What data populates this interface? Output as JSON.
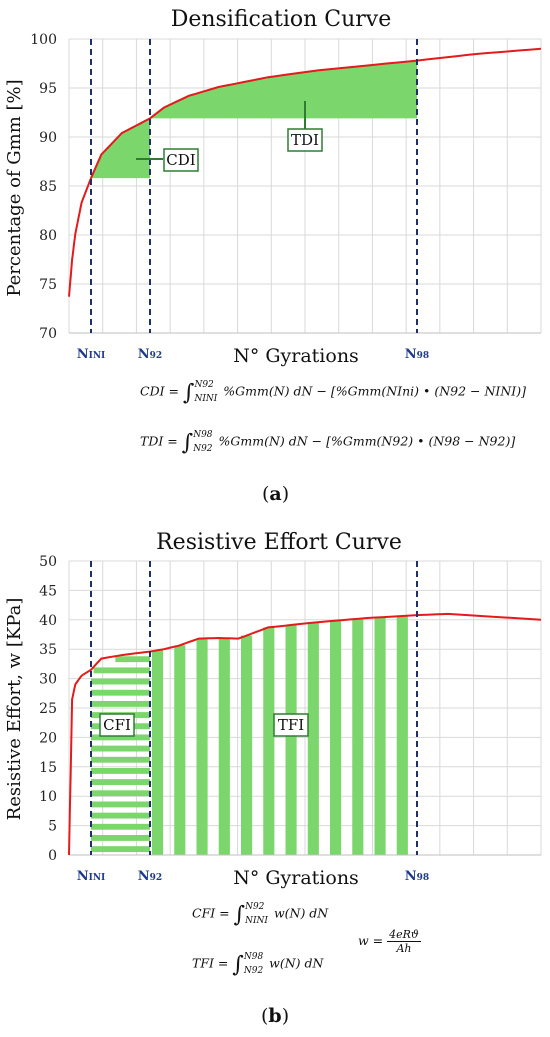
{
  "chart_data": [
    {
      "type": "line",
      "title": "Densification Curve",
      "xlabel": "N° Gyrations",
      "ylabel": "Percentage of Gmm [%]",
      "ylim": [
        70,
        100
      ],
      "yticks": [
        70,
        75,
        80,
        85,
        90,
        95,
        100
      ],
      "grid": true,
      "markers": [
        {
          "main": "N",
          "sub": "INI",
          "x": 8
        },
        {
          "main": "N",
          "sub": "92",
          "x": 31
        },
        {
          "main": "N",
          "sub": "98",
          "x": 300
        }
      ],
      "series": [
        {
          "name": "",
          "color": "#e41a1c",
          "x": [
            1,
            2,
            3,
            5,
            8,
            12,
            20,
            31,
            45,
            70,
            100,
            150,
            200,
            300,
            400,
            500
          ],
          "y": [
            73.7,
            77.5,
            80.1,
            83.3,
            85.8,
            88.2,
            90.4,
            91.9,
            93.0,
            94.2,
            95.1,
            96.1,
            96.8,
            97.8,
            98.5,
            99.0
          ]
        }
      ],
      "areas": [
        {
          "label": "CDI",
          "x_from": 8,
          "x_to": 31,
          "base": 85.8,
          "color": "#7bd66b"
        },
        {
          "label": "TDI",
          "x_from": 31,
          "x_to": 300,
          "base": 91.9,
          "color": "#7bd66b"
        }
      ],
      "formulas": {
        "cdi": {
          "lhs": "CDI =",
          "upper": "N92",
          "lower": "NINI",
          "rhs": "%Gmm(N) dN − [%Gmm(NIni) • (N92 − NINI)]"
        },
        "tdi": {
          "lhs": "TDI =",
          "upper": "N98",
          "lower": "N92",
          "rhs": "%Gmm(N) dN − [%Gmm(N92) • (N98 − N92)]"
        }
      },
      "caption": {
        "open": "(",
        "letter": "a",
        "close": ")"
      }
    },
    {
      "type": "line",
      "title": "Resistive Effort Curve",
      "xlabel": "N° Gyrations",
      "ylabel": "Resistive Effort, w [KPa]",
      "ylim": [
        0,
        50
      ],
      "yticks": [
        0,
        5,
        10,
        15,
        20,
        25,
        30,
        35,
        40,
        45,
        50
      ],
      "grid": true,
      "markers": [
        {
          "main": "N",
          "sub": "INI",
          "x": 8
        },
        {
          "main": "N",
          "sub": "92",
          "x": 31
        },
        {
          "main": "N",
          "sub": "98",
          "x": 300
        }
      ],
      "series": [
        {
          "name": "",
          "color": "#e41a1c",
          "x": [
            1,
            2,
            3,
            5,
            8,
            12,
            20,
            31,
            45,
            60,
            80,
            100,
            120,
            150,
            200,
            250,
            300,
            350,
            500
          ],
          "y": [
            0,
            26.5,
            29.0,
            30.5,
            31.5,
            33.4,
            34.0,
            34.6,
            35.0,
            35.6,
            36.8,
            36.9,
            36.8,
            38.7,
            39.6,
            40.3,
            40.8,
            41.0,
            40.0
          ]
        }
      ],
      "areas": [
        {
          "label": "CFI",
          "x_from": 8,
          "x_to": 31,
          "pattern": "horizontal-stripes",
          "color": "#7bd66b"
        },
        {
          "label": "TFI",
          "x_from": 31,
          "x_to": 300,
          "pattern": "vertical-stripes",
          "color": "#7bd66b"
        }
      ],
      "formulas": {
        "cfi": {
          "lhs": "CFI =",
          "upper": "N92",
          "lower": "NINI",
          "rhs": "w(N) dN"
        },
        "tfi": {
          "lhs": "TFI =",
          "upper": "N98",
          "lower": "N92",
          "rhs": "w(N) dN"
        },
        "w": {
          "lhs": "w =",
          "num": "4eRϑ",
          "den": "Ah"
        }
      },
      "caption": {
        "open": "(",
        "letter": "b",
        "close": ")"
      }
    }
  ]
}
